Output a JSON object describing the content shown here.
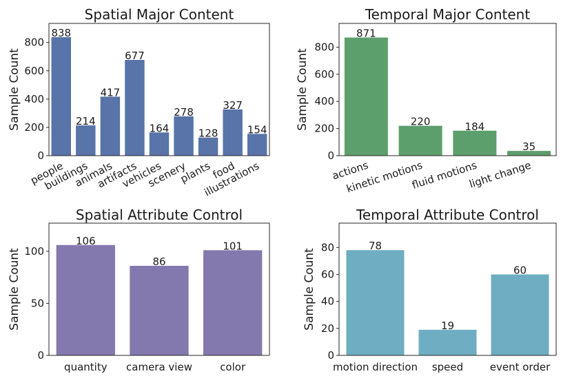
{
  "chart_data": [
    {
      "type": "bar",
      "title": "Spatial Major Content",
      "xlabel": "",
      "ylabel": "Sample Count",
      "categories": [
        "people",
        "buildings",
        "animals",
        "artifacts",
        "vehicles",
        "scenery",
        "plants",
        "food",
        "illustrations"
      ],
      "values": [
        838,
        214,
        417,
        677,
        164,
        278,
        128,
        327,
        154
      ],
      "ylim": [
        0,
        935
      ],
      "yticks": [
        0,
        200,
        400,
        600,
        800
      ],
      "color": "#5874a8",
      "xtick_rotation": -28,
      "grid": false
    },
    {
      "type": "bar",
      "title": "Temporal Major Content",
      "xlabel": "",
      "ylabel": "Sample Count",
      "categories": [
        "actions",
        "kinetic motions",
        "fluid motions",
        "light change"
      ],
      "values": [
        871,
        220,
        184,
        35
      ],
      "ylim": [
        0,
        975
      ],
      "yticks": [
        0,
        200,
        400,
        600,
        800
      ],
      "color": "#5c9f6c",
      "xtick_rotation": -18,
      "grid": false
    },
    {
      "type": "bar",
      "title": "Spatial Attribute Control",
      "xlabel": "",
      "ylabel": "Sample Count",
      "categories": [
        "quantity",
        "camera view",
        "color"
      ],
      "values": [
        106,
        86,
        101
      ],
      "ylim": [
        0,
        127
      ],
      "yticks": [
        0,
        50,
        100
      ],
      "color": "#8479ae",
      "xtick_rotation": 0,
      "grid": false
    },
    {
      "type": "bar",
      "title": "Temporal Attribute Control",
      "xlabel": "",
      "ylabel": "Sample Count",
      "categories": [
        "motion direction",
        "speed",
        "event order"
      ],
      "values": [
        78,
        19,
        60
      ],
      "ylim": [
        0,
        98
      ],
      "yticks": [
        0,
        20,
        40,
        60,
        80
      ],
      "color": "#6fadc2",
      "xtick_rotation": 0,
      "grid": false
    }
  ]
}
